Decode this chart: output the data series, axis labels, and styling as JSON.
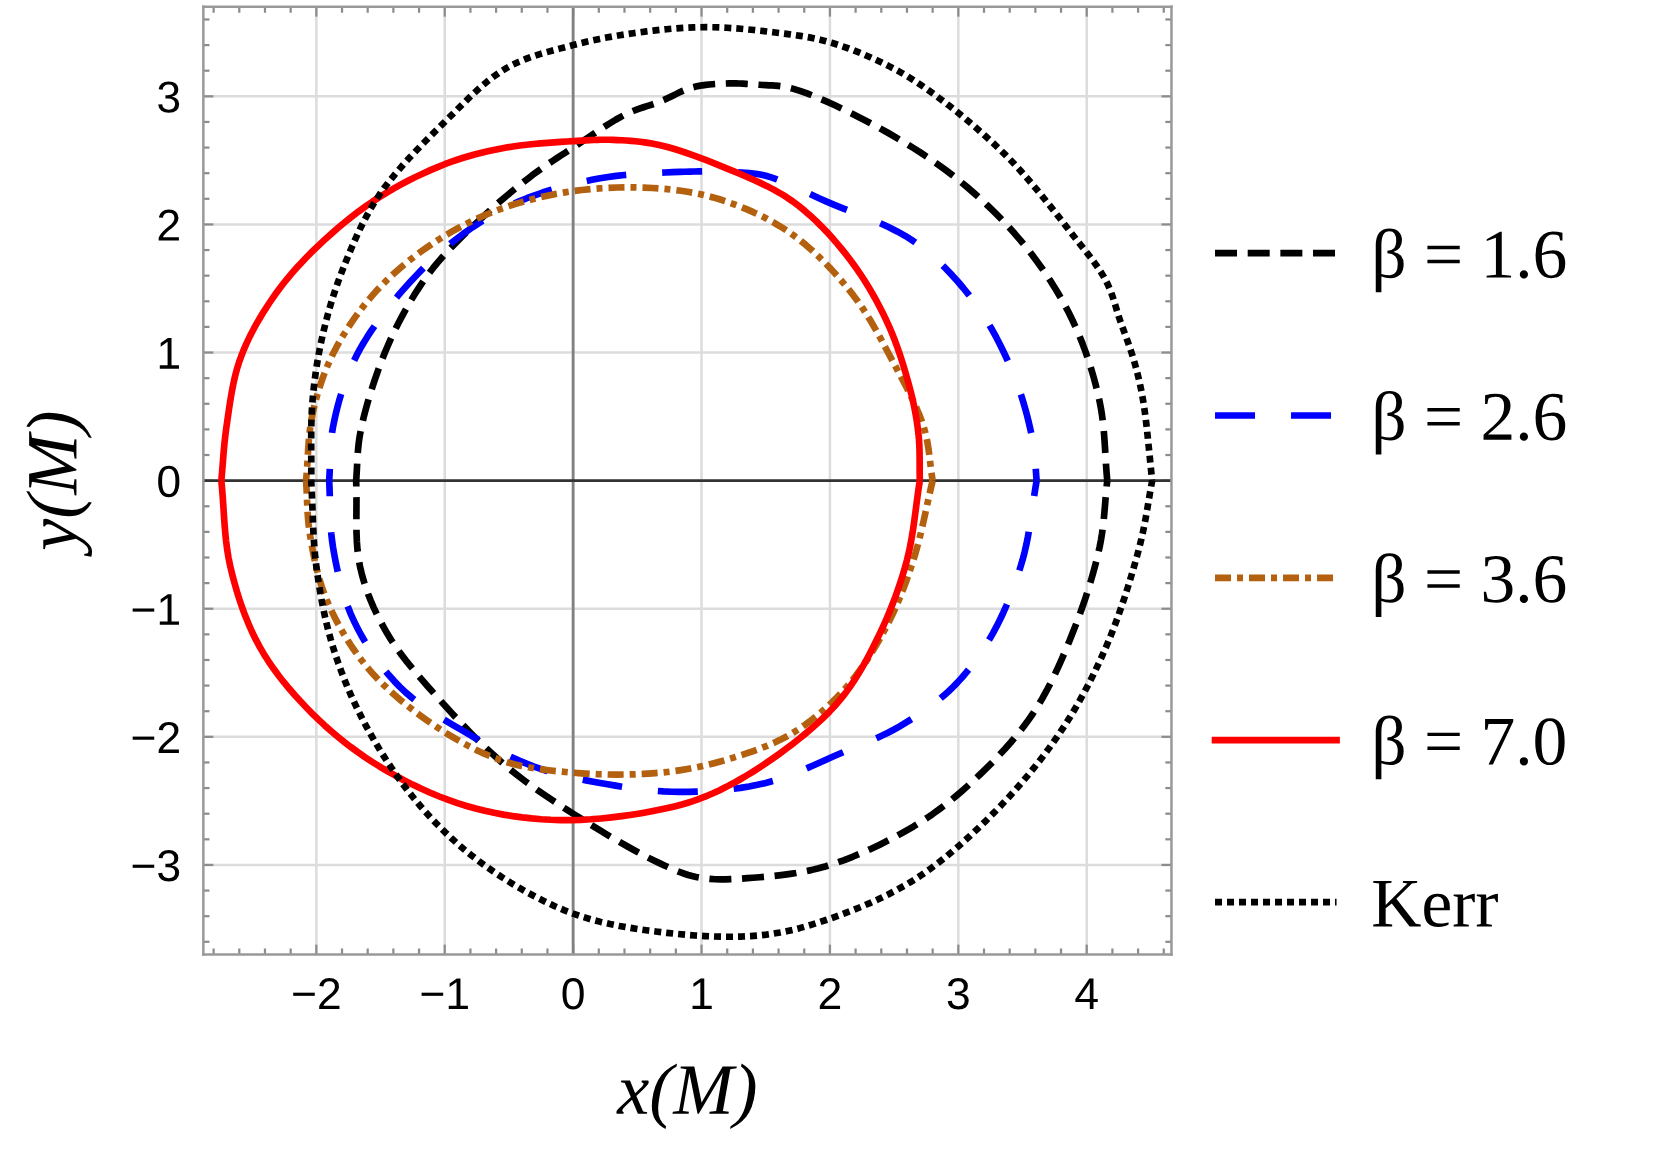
{
  "chart_data": {
    "type": "line",
    "xlabel": "x(M)",
    "ylabel": "y(M)",
    "xlim": [
      -2.88,
      4.66
    ],
    "ylim": [
      -3.7,
      3.7
    ],
    "xticks": [
      {
        "value": -2.8,
        "label": null
      },
      {
        "value": -2.6,
        "label": null
      },
      {
        "value": -2.4,
        "label": null
      },
      {
        "value": -2.2,
        "label": null
      },
      {
        "value": -2,
        "label": "−2"
      },
      {
        "value": -1.8,
        "label": null
      },
      {
        "value": -1.6,
        "label": null
      },
      {
        "value": -1.4,
        "label": null
      },
      {
        "value": -1.2,
        "label": null
      },
      {
        "value": -1,
        "label": "−1"
      },
      {
        "value": -0.8,
        "label": null
      },
      {
        "value": -0.6,
        "label": null
      },
      {
        "value": -0.4,
        "label": null
      },
      {
        "value": -0.2,
        "label": null
      },
      0,
      {
        "value": 0.2,
        "label": null
      },
      {
        "value": 0.4,
        "label": null
      },
      {
        "value": 0.6,
        "label": null
      },
      {
        "value": 0.8,
        "label": null
      },
      1,
      {
        "value": 1.2,
        "label": null
      },
      {
        "value": 1.4,
        "label": null
      },
      {
        "value": 1.6,
        "label": null
      },
      {
        "value": 1.8,
        "label": null
      },
      2,
      {
        "value": 2.2,
        "label": null
      },
      {
        "value": 2.4,
        "label": null
      },
      {
        "value": 2.6,
        "label": null
      },
      {
        "value": 2.8,
        "label": null
      },
      3,
      {
        "value": 3.2,
        "label": null
      },
      {
        "value": 3.4,
        "label": null
      },
      {
        "value": 3.6,
        "label": null
      },
      {
        "value": 3.8,
        "label": null
      },
      4,
      {
        "value": 4.2,
        "label": null
      },
      {
        "value": 4.4,
        "label": null
      },
      {
        "value": 4.6,
        "label": null
      }
    ],
    "yticks": [
      {
        "value": -3.6,
        "label": null
      },
      {
        "value": -3.4,
        "label": null
      },
      {
        "value": -3.2,
        "label": null
      },
      {
        "value": -3,
        "label": "−3"
      },
      {
        "value": -2.8,
        "label": null
      },
      {
        "value": -2.6,
        "label": null
      },
      {
        "value": -2.4,
        "label": null
      },
      {
        "value": -2.2,
        "label": null
      },
      {
        "value": -2,
        "label": "−2"
      },
      {
        "value": -1.8,
        "label": null
      },
      {
        "value": -1.6,
        "label": null
      },
      {
        "value": -1.4,
        "label": null
      },
      {
        "value": -1.2,
        "label": null
      },
      {
        "value": -1,
        "label": "−1"
      },
      {
        "value": -0.8,
        "label": null
      },
      {
        "value": -0.6,
        "label": null
      },
      {
        "value": -0.4,
        "label": null
      },
      {
        "value": -0.2,
        "label": null
      },
      0,
      {
        "value": 0.2,
        "label": null
      },
      {
        "value": 0.4,
        "label": null
      },
      {
        "value": 0.6,
        "label": null
      },
      {
        "value": 0.8,
        "label": null
      },
      1,
      {
        "value": 1.2,
        "label": null
      },
      {
        "value": 1.4,
        "label": null
      },
      {
        "value": 1.6,
        "label": null
      },
      {
        "value": 1.8,
        "label": null
      },
      2,
      {
        "value": 2.2,
        "label": null
      },
      {
        "value": 2.4,
        "label": null
      },
      {
        "value": 2.6,
        "label": null
      },
      {
        "value": 2.8,
        "label": null
      },
      3,
      {
        "value": 3.2,
        "label": null
      },
      {
        "value": 3.4,
        "label": null
      },
      {
        "value": 3.6,
        "label": null
      }
    ],
    "grid": true,
    "legend": "right",
    "ref_lines": [
      {
        "axis": "x",
        "value": 0,
        "color": "#808080"
      },
      {
        "axis": "y",
        "value": 0,
        "color": "#333333"
      }
    ],
    "series": [
      {
        "name": "β = 1.6",
        "color": "#000000",
        "line_style": "dashed",
        "x": [
          -1.69,
          -1.66,
          -1.53,
          -1.35,
          -1.09,
          -0.68,
          -0.31,
          0,
          0.41,
          0.68,
          0.93,
          1.19,
          1.45,
          1.71,
          2.39,
          3.01,
          3.53,
          3.89,
          4.1,
          4.16,
          4.1,
          3.89,
          3.58,
          3.12,
          2.65,
          1.97,
          1.4,
          0.99,
          0.68,
          0,
          -0.52,
          -1.04,
          -1.45,
          -1.66,
          -1.69
        ],
        "values": [
          0,
          0.36,
          0.83,
          1.25,
          1.66,
          2.08,
          2.39,
          2.6,
          2.86,
          2.96,
          3.07,
          3.1,
          3.09,
          3.06,
          2.75,
          2.34,
          1.82,
          1.25,
          0.62,
          0,
          -0.52,
          -1.19,
          -1.82,
          -2.34,
          -2.7,
          -3.01,
          -3.1,
          -3.1,
          -2.99,
          -2.6,
          -2.23,
          -1.71,
          -1.19,
          -0.67,
          0
        ]
      },
      {
        "name": "β = 2.6",
        "color": "#0000ff",
        "line_style": "long dashed",
        "x": [
          -1.9,
          -1.87,
          -1.71,
          -1.4,
          -0.93,
          -0.42,
          0.21,
          0.83,
          1.19,
          1.5,
          1.97,
          2.65,
          3.12,
          3.43,
          3.58,
          3.61,
          3.5,
          3.27,
          2.96,
          2.54,
          2.08,
          1.5,
          0.83,
          0.21,
          -0.31,
          -0.83,
          -1.35,
          -1.71,
          -1.87,
          -1.9
        ],
        "values": [
          0,
          0.42,
          0.93,
          1.4,
          1.87,
          2.18,
          2.36,
          2.41,
          2.41,
          2.38,
          2.18,
          1.87,
          1.4,
          0.83,
          0.31,
          0,
          -0.62,
          -1.19,
          -1.61,
          -1.92,
          -2.13,
          -2.36,
          -2.43,
          -2.36,
          -2.23,
          -1.97,
          -1.61,
          -1.09,
          -0.52,
          0
        ]
      },
      {
        "name": "β = 3.6",
        "color": "#b3600f",
        "line_style": "dashdot",
        "x": [
          -2.08,
          -2.03,
          -1.87,
          -1.56,
          -1.14,
          -0.62,
          0,
          0.68,
          1.19,
          1.71,
          2.18,
          2.49,
          2.73,
          2.8,
          2.65,
          2.44,
          2.13,
          1.71,
          1.19,
          0.68,
          0,
          -0.57,
          -1.14,
          -1.61,
          -1.92,
          -2.05,
          -2.08
        ],
        "values": [
          0,
          0.52,
          0.99,
          1.45,
          1.82,
          2.1,
          2.26,
          2.28,
          2.18,
          1.92,
          1.45,
          0.93,
          0.42,
          0,
          -0.62,
          -1.14,
          -1.61,
          -1.97,
          -2.18,
          -2.28,
          -2.28,
          -2.18,
          -1.87,
          -1.45,
          -0.93,
          -0.42,
          0
        ]
      },
      {
        "name": "β = 7.0",
        "color": "#ff0000",
        "line_style": "solid",
        "x": [
          -2.74,
          -2.7,
          -2.6,
          -2.39,
          -2.08,
          -1.56,
          -1.0,
          -0.52,
          0,
          0.31,
          0.67,
          1.19,
          1.71,
          2.13,
          2.44,
          2.62,
          2.69,
          2.7,
          2.6,
          2.39,
          2.08,
          1.61,
          1.09,
          0.67,
          -0.1,
          -0.83,
          -1.51,
          -2.03,
          -2.44,
          -2.67,
          -2.74
        ],
        "values": [
          0,
          0.42,
          0.93,
          1.35,
          1.74,
          2.18,
          2.47,
          2.6,
          2.65,
          2.66,
          2.62,
          2.44,
          2.18,
          1.76,
          1.25,
          0.73,
          0.36,
          0,
          -0.62,
          -1.19,
          -1.71,
          -2.13,
          -2.44,
          -2.57,
          -2.65,
          -2.54,
          -2.23,
          -1.82,
          -1.3,
          -0.67,
          0
        ]
      },
      {
        "name": "Kerr",
        "color": "#000000",
        "line_style": "dotted",
        "x": [
          -2.04,
          -2.03,
          -1.95,
          -1.79,
          -1.51,
          -1.0,
          -0.52,
          0,
          0.52,
          1.04,
          1.56,
          1.97,
          2.39,
          2.75,
          3.37,
          3.89,
          4.15,
          4.26,
          4.37,
          4.44,
          4.51,
          4.41,
          4.15,
          3.79,
          3.27,
          2.65,
          1.97,
          1.45,
          0.73,
          0,
          -0.68,
          -1.19,
          -1.61,
          -1.87,
          -2.0,
          -2.04
        ],
        "values": [
          0,
          0.62,
          1.14,
          1.66,
          2.23,
          2.8,
          3.22,
          3.4,
          3.5,
          3.54,
          3.5,
          3.43,
          3.27,
          3.06,
          2.54,
          1.92,
          1.56,
          1.25,
          0.93,
          0.62,
          0,
          -0.52,
          -1.3,
          -1.97,
          -2.6,
          -3.12,
          -3.43,
          -3.55,
          -3.53,
          -3.38,
          -3.01,
          -2.54,
          -1.92,
          -1.3,
          -0.67,
          0
        ]
      }
    ]
  }
}
